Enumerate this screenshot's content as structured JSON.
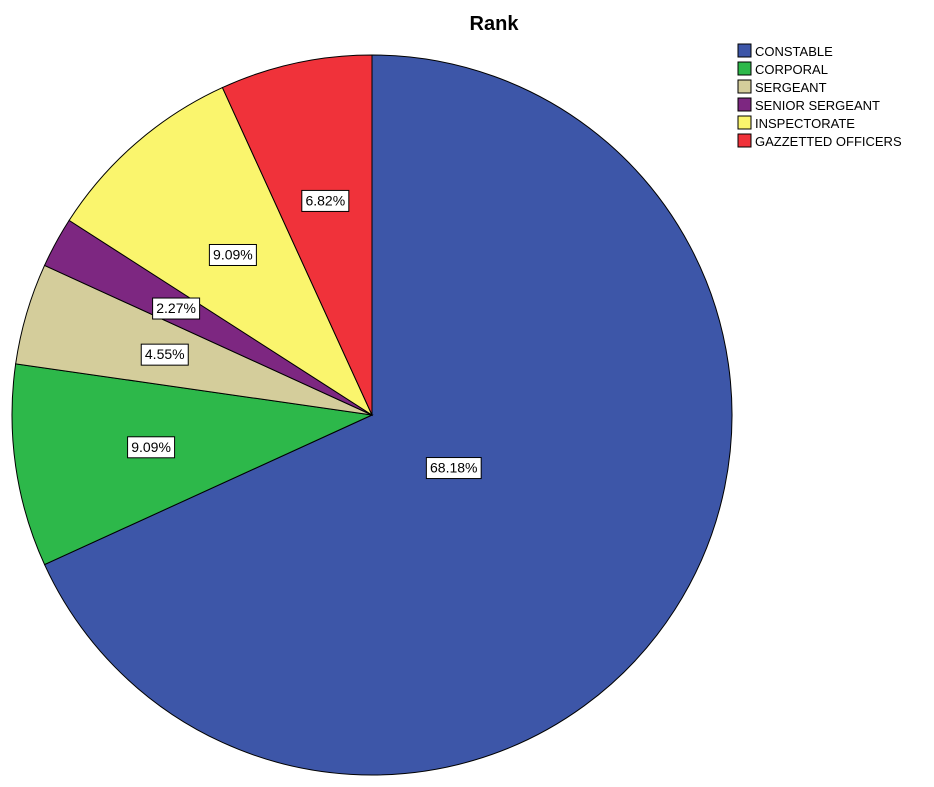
{
  "chart_data": {
    "type": "pie",
    "title": "Rank",
    "categories": [
      "CONSTABLE",
      "CORPORAL",
      "SERGEANT",
      "SENIOR SERGEANT",
      "INSPECTORATE",
      "GAZZETTED OFFICERS"
    ],
    "values": [
      68.18,
      9.09,
      4.55,
      2.27,
      9.09,
      6.82
    ],
    "labels": [
      "68.18%",
      "9.09%",
      "4.55%",
      "2.27%",
      "9.09%",
      "6.82%"
    ],
    "colors": [
      "#3d56a8",
      "#2db84a",
      "#d4cd9b",
      "#7d2781",
      "#faf56d",
      "#f0323a"
    ],
    "legend_position": "top-right",
    "start_angle": "12 o'clock",
    "direction": "clockwise"
  }
}
